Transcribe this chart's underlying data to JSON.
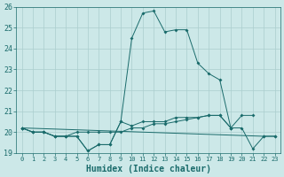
{
  "x": [
    0,
    1,
    2,
    3,
    4,
    5,
    6,
    7,
    8,
    9,
    10,
    11,
    12,
    13,
    14,
    15,
    16,
    17,
    18,
    19,
    20,
    21,
    22,
    23
  ],
  "line_main": [
    20.2,
    20.0,
    20.0,
    19.8,
    19.8,
    19.8,
    19.1,
    19.4,
    19.4,
    20.5,
    24.5,
    25.7,
    25.8,
    24.8,
    24.9,
    24.9,
    23.3,
    22.8,
    22.5,
    20.2,
    20.8,
    20.8,
    null,
    null
  ],
  "line_flat": [
    20.2,
    20.0,
    20.0,
    19.8,
    19.8,
    19.8,
    19.1,
    19.4,
    19.4,
    20.5,
    20.3,
    20.5,
    20.5,
    20.5,
    20.7,
    20.7,
    20.7,
    20.8,
    20.8,
    20.2,
    20.2,
    19.2,
    19.8,
    19.8
  ],
  "line_mid": [
    20.2,
    20.0,
    20.0,
    19.8,
    19.8,
    20.0,
    20.0,
    20.0,
    20.0,
    20.0,
    20.2,
    20.2,
    20.4,
    20.4,
    20.5,
    20.6,
    20.7,
    20.8,
    20.8,
    20.2,
    null,
    null,
    null,
    null
  ],
  "line_end": [
    20.2,
    null,
    null,
    null,
    null,
    null,
    null,
    null,
    null,
    null,
    null,
    null,
    null,
    null,
    null,
    null,
    null,
    null,
    null,
    null,
    null,
    null,
    19.8,
    19.8
  ],
  "bg_color": "#cce8e8",
  "grid_color": "#aacece",
  "line_color": "#1a6b6b",
  "xlabel": "Humidex (Indice chaleur)",
  "ylim": [
    19.0,
    26.0
  ],
  "yticks": [
    19,
    20,
    21,
    22,
    23,
    24,
    25,
    26
  ],
  "xlim_min": -0.5,
  "xlim_max": 23.5
}
